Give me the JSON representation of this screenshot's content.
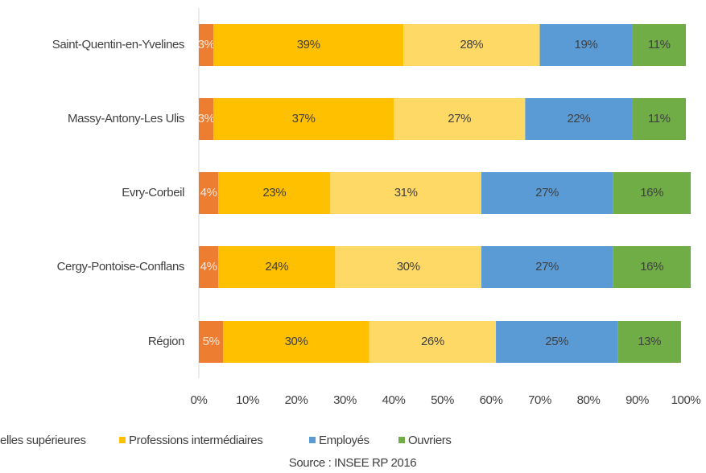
{
  "chart_data": {
    "type": "stacked-barh",
    "categories": [
      "Saint-Quentin-en-Yvelines",
      "Massy-Antony-Les Ulis",
      "Evry-Corbeil",
      "Cergy-Pontoise-Conflans",
      "Région"
    ],
    "series": [
      {
        "name": "elles supérieures",
        "color": "#ed7d31",
        "values": [
          3,
          3,
          4,
          4,
          5
        ],
        "value_labels": [
          "3%",
          "3%",
          "4%",
          "4%",
          "5%"
        ]
      },
      {
        "name": "Professions intermédiaires",
        "color": "#ffc000",
        "values": [
          39,
          37,
          23,
          24,
          30
        ],
        "value_labels": [
          "39%",
          "37%",
          "23%",
          "24%",
          "30%"
        ]
      },
      {
        "name": "",
        "color": "#ffd966",
        "values": [
          28,
          27,
          31,
          30,
          26
        ],
        "value_labels": [
          "28%",
          "27%",
          "31%",
          "30%",
          "26%"
        ]
      },
      {
        "name": "Employés",
        "color": "#5b9bd5",
        "values": [
          19,
          22,
          27,
          27,
          25
        ],
        "value_labels": [
          "19%",
          "22%",
          "27%",
          "27%",
          "25%"
        ]
      },
      {
        "name": "Ouvriers",
        "color": "#70ad47",
        "values": [
          11,
          11,
          16,
          16,
          13
        ],
        "value_labels": [
          "11%",
          "11%",
          "16%",
          "16%",
          "13%"
        ]
      }
    ],
    "xlim": [
      0,
      100
    ],
    "xticks": [
      {
        "value": 0,
        "label": "0%"
      },
      {
        "value": 10,
        "label": "10%"
      },
      {
        "value": 20,
        "label": "20%"
      },
      {
        "value": 30,
        "label": "30%"
      },
      {
        "value": 40,
        "label": "40%"
      },
      {
        "value": 50,
        "label": "50%"
      },
      {
        "value": 60,
        "label": "60%"
      },
      {
        "value": 70,
        "label": "70%"
      },
      {
        "value": 80,
        "label": "80%"
      },
      {
        "value": 90,
        "label": "90%"
      },
      {
        "value": 100,
        "label": "100%"
      }
    ],
    "source": "Source : INSEE RP 2016"
  }
}
